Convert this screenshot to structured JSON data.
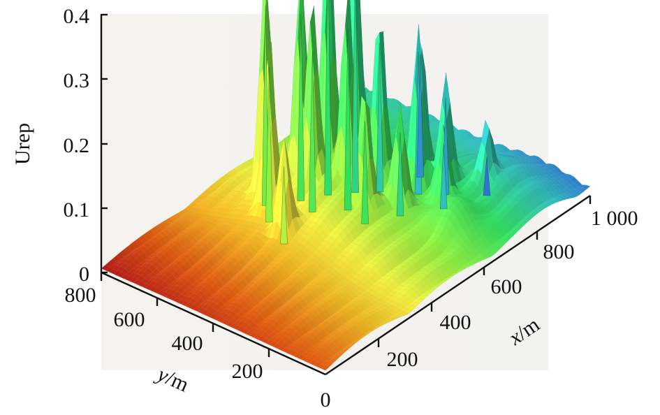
{
  "chart_data": {
    "type": "surface",
    "title": "",
    "zlabel": "Urep",
    "xlabel_var": "x",
    "xlabel_unit": "/m",
    "ylabel_var": "y",
    "ylabel_unit": "/m",
    "zlim": [
      0,
      0.4
    ],
    "xlim": [
      0,
      1000
    ],
    "ylim": [
      0,
      800
    ],
    "z_ticks": [
      "0",
      "0.1",
      "0.2",
      "0.3",
      "0.4"
    ],
    "x_ticks": [
      "200",
      "400",
      "600",
      "800",
      "1 000"
    ],
    "y_ticks": [
      "800",
      "600",
      "400",
      "200"
    ],
    "origin_label": "0",
    "colormap": [
      "#b01818",
      "#e05a10",
      "#f0b020",
      "#f0f040",
      "#90f040",
      "#30e060",
      "#30c0c0",
      "#3050e0",
      "#7040e0"
    ],
    "peaks": [
      {
        "x": 430,
        "y": 620,
        "z": 0.33
      },
      {
        "x": 500,
        "y": 560,
        "z": 0.31
      },
      {
        "x": 560,
        "y": 520,
        "z": 0.39
      },
      {
        "x": 610,
        "y": 470,
        "z": 0.37
      },
      {
        "x": 480,
        "y": 500,
        "z": 0.27
      },
      {
        "x": 540,
        "y": 430,
        "z": 0.3
      },
      {
        "x": 650,
        "y": 420,
        "z": 0.25
      },
      {
        "x": 380,
        "y": 560,
        "z": 0.26
      },
      {
        "x": 700,
        "y": 330,
        "z": 0.24
      },
      {
        "x": 740,
        "y": 270,
        "z": 0.17
      },
      {
        "x": 690,
        "y": 230,
        "z": 0.12
      },
      {
        "x": 760,
        "y": 380,
        "z": 0.21
      },
      {
        "x": 800,
        "y": 180,
        "z": 0.08
      },
      {
        "x": 330,
        "y": 460,
        "z": 0.14
      },
      {
        "x": 600,
        "y": 300,
        "z": 0.15
      },
      {
        "x": 520,
        "y": 350,
        "z": 0.18
      }
    ]
  }
}
